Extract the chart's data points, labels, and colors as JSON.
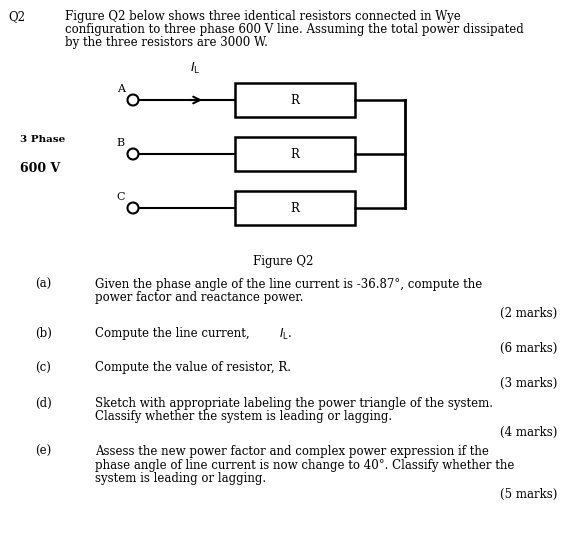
{
  "bg_color": "#ffffff",
  "text_color": "#000000",
  "fig_width": 5.67,
  "fig_height": 5.33,
  "dpi": 100,
  "font_size": 8.5,
  "font_family": "DejaVu Serif",
  "q_label": "Q2",
  "question_text_lines": [
    "Figure Q2 below shows three identical resistors connected in Wye",
    "configuration to three phase 600 V line. Assuming the total power dissipated",
    "by the three resistors are 3000 W."
  ],
  "figure_caption": "Figure Q2",
  "label_3phase": "3 Phase",
  "label_600V": "600 V",
  "label_A": "A",
  "label_B": "B",
  "label_C": "C",
  "label_R": "R",
  "parts": [
    {
      "letter": "(a)",
      "lines": [
        "Given the phase angle of the line current is -36.87°, compute the",
        "power factor and reactance power."
      ],
      "marks": "(2 marks)"
    },
    {
      "letter": "(b)",
      "lines": [
        "Compute the line current, I_L."
      ],
      "marks": "(6 marks)"
    },
    {
      "letter": "(c)",
      "lines": [
        "Compute the value of resistor, R."
      ],
      "marks": "(3 marks)"
    },
    {
      "letter": "(d)",
      "lines": [
        "Sketch with appropriate labeling the power triangle of the system.",
        "Classify whether the system is leading or lagging."
      ],
      "marks": "(4 marks)"
    },
    {
      "letter": "(e)",
      "lines": [
        "Assess the new power factor and complex power expression if the",
        "phase angle of line current is now change to 40°. Classify whether the",
        "system is leading or lagging."
      ],
      "marks": "(5 marks)"
    }
  ]
}
